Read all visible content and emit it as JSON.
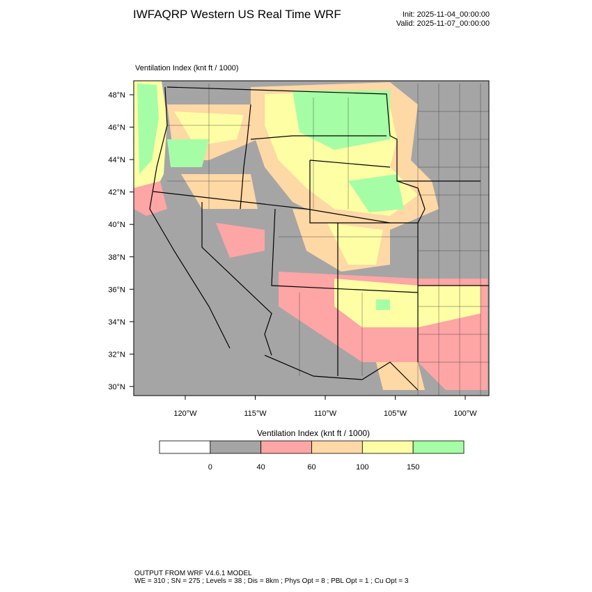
{
  "header": {
    "title": "IWFAQRP Western US Real Time WRF",
    "init": "Init: 2025-11-04_00:00:00",
    "valid": "Valid: 2025-11-07_00:00:00"
  },
  "map": {
    "label": "Ventilation Index   (knt ft / 1000)",
    "lat_labels": [
      "48°N",
      "46°N",
      "44°N",
      "42°N",
      "40°N",
      "38°N",
      "36°N",
      "34°N",
      "32°N",
      "30°N"
    ],
    "lon_labels": [
      "120°W",
      "115°W",
      "110°W",
      "105°W",
      "100°W"
    ]
  },
  "colorbar": {
    "title": "Ventilation Index  (knt ft / 1000)",
    "colors": [
      "#ffffff",
      "#a5a5a5",
      "#fea5a5",
      "#fed8a5",
      "#fefea5",
      "#a5fea5"
    ],
    "ticks": [
      0,
      40,
      60,
      100,
      150
    ]
  },
  "footer": {
    "line1": "OUTPUT FROM WRF V4.6.1 MODEL",
    "line2": "WE = 310 ; SN = 275 ; Levels = 38 ; Dis = 8km ; Phys Opt = 8 ; PBL Opt = 1 ; Cu Opt = 3"
  }
}
